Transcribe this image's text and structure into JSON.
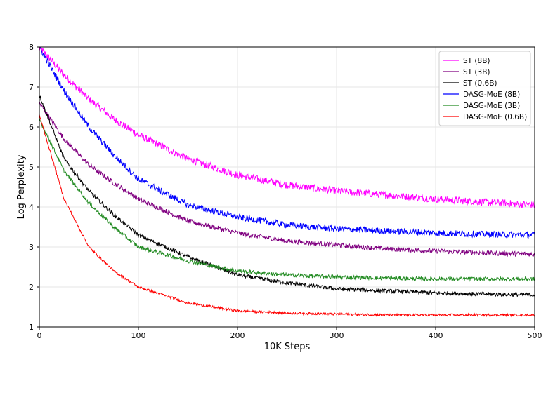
{
  "chart_data": {
    "type": "line",
    "title": "",
    "xlabel": "10K Steps",
    "ylabel": "Log Perplexity",
    "xlim": [
      0,
      500
    ],
    "ylim": [
      1,
      8
    ],
    "xticks": [
      0,
      100,
      200,
      300,
      400,
      500
    ],
    "yticks": [
      1,
      2,
      3,
      4,
      5,
      6,
      7,
      8
    ],
    "grid": true,
    "legend_position": "top-right",
    "series": [
      {
        "name": "ST (8B)",
        "color": "#ff00ff",
        "x": [
          0,
          25,
          50,
          75,
          100,
          150,
          200,
          250,
          300,
          350,
          400,
          450,
          500
        ],
        "y": [
          8.0,
          7.3,
          6.7,
          6.2,
          5.8,
          5.2,
          4.8,
          4.55,
          4.4,
          4.3,
          4.2,
          4.12,
          4.05
        ],
        "noise": 0.09
      },
      {
        "name": "ST (3B)",
        "color": "#800080",
        "x": [
          0,
          25,
          50,
          75,
          100,
          150,
          200,
          250,
          300,
          350,
          400,
          450,
          500
        ],
        "y": [
          6.6,
          5.7,
          5.05,
          4.6,
          4.2,
          3.65,
          3.35,
          3.15,
          3.05,
          2.95,
          2.9,
          2.85,
          2.82
        ],
        "noise": 0.06
      },
      {
        "name": "ST (0.6B)",
        "color": "#000000",
        "x": [
          0,
          25,
          50,
          75,
          100,
          150,
          200,
          250,
          300,
          350,
          400,
          450,
          500
        ],
        "y": [
          6.8,
          5.2,
          4.4,
          3.8,
          3.3,
          2.75,
          2.3,
          2.1,
          1.95,
          1.9,
          1.85,
          1.82,
          1.8
        ],
        "noise": 0.05
      },
      {
        "name": "DASG-MoE (8B)",
        "color": "#0000ff",
        "x": [
          0,
          25,
          50,
          75,
          100,
          150,
          200,
          250,
          300,
          350,
          400,
          450,
          500
        ],
        "y": [
          8.0,
          6.9,
          6.0,
          5.3,
          4.7,
          4.05,
          3.75,
          3.55,
          3.45,
          3.4,
          3.35,
          3.32,
          3.3
        ],
        "noise": 0.08
      },
      {
        "name": "DASG-MoE (3B)",
        "color": "#228b22",
        "x": [
          0,
          25,
          50,
          75,
          100,
          150,
          200,
          250,
          300,
          350,
          400,
          450,
          500
        ],
        "y": [
          6.2,
          4.9,
          4.1,
          3.5,
          3.0,
          2.65,
          2.4,
          2.3,
          2.25,
          2.22,
          2.2,
          2.2,
          2.2
        ],
        "noise": 0.05
      },
      {
        "name": "DASG-MoE (0.6B)",
        "color": "#ff0000",
        "x": [
          0,
          25,
          50,
          75,
          100,
          150,
          200,
          250,
          300,
          350,
          400,
          450,
          500
        ],
        "y": [
          6.3,
          4.2,
          3.0,
          2.4,
          2.0,
          1.6,
          1.4,
          1.35,
          1.32,
          1.3,
          1.3,
          1.3,
          1.3
        ],
        "noise": 0.03
      }
    ]
  }
}
